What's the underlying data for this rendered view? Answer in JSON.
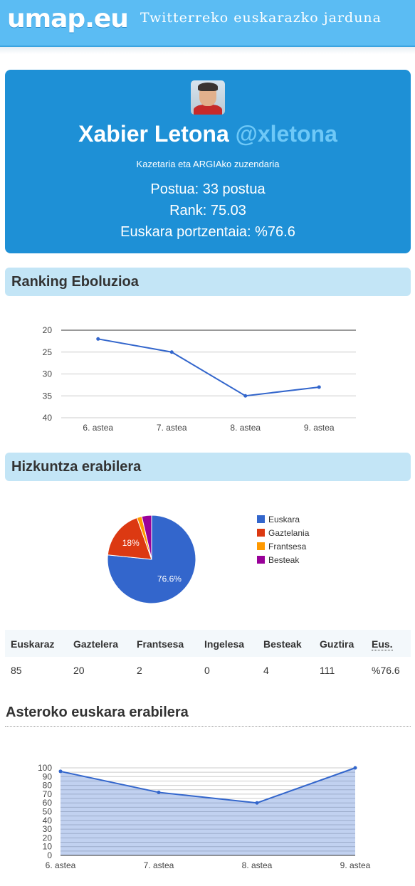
{
  "header": {
    "logo": "umap.eu",
    "tagline": "Twitterreko euskarazko jarduna"
  },
  "profile": {
    "avatar_icon": "user-avatar-photo",
    "name": "Xabier Letona",
    "handle": "@xletona",
    "bio": "Kazetaria eta ARGIAko zuzendaria",
    "position": "Postua: 33 postua",
    "rank": "Rank: 75.03",
    "percentage": "Euskara portzentaia: %76.6"
  },
  "sections": {
    "ranking": "Ranking Eboluzioa",
    "language": "Hizkuntza erabilera",
    "weekly": "Asteroko euskara erabilera"
  },
  "table": {
    "headers": [
      "Euskaraz",
      "Gaztelera",
      "Frantsesa",
      "Ingelesa",
      "Besteak",
      "Guztira",
      "Eus."
    ],
    "values": [
      "85",
      "20",
      "2",
      "0",
      "4",
      "111",
      "%76.6"
    ]
  },
  "chart_data": [
    {
      "type": "line",
      "categories": [
        "6. astea",
        "7. astea",
        "8. astea",
        "9. astea"
      ],
      "series": [
        {
          "values": [
            22,
            25,
            35,
            33
          ]
        }
      ],
      "y_ticks": [
        "20",
        "25",
        "30",
        "35",
        "40"
      ],
      "ylim": [
        20,
        40
      ],
      "y_reversed": true,
      "grid": true,
      "color": "#3366cc"
    },
    {
      "type": "pie",
      "slices": [
        {
          "name": "Euskara",
          "value": 76.6,
          "label": "76.6%",
          "color": "#3366cc"
        },
        {
          "name": "Gaztelania",
          "value": 18.0,
          "label": "18%",
          "color": "#dc3912"
        },
        {
          "name": "Frantsesa",
          "value": 1.8,
          "label": "",
          "color": "#ff9900"
        },
        {
          "name": "Besteak",
          "value": 3.6,
          "label": "",
          "color": "#990099"
        }
      ],
      "legend": "right"
    },
    {
      "type": "area",
      "categories": [
        "6. astea",
        "7. astea",
        "8. astea",
        "9. astea"
      ],
      "series": [
        {
          "values": [
            96,
            72,
            60,
            100
          ]
        }
      ],
      "y_ticks": [
        "0",
        "10",
        "20",
        "30",
        "40",
        "50",
        "60",
        "70",
        "80",
        "90",
        "100"
      ],
      "ylim": [
        0,
        100
      ],
      "grid": true,
      "color": "#3366cc"
    }
  ]
}
